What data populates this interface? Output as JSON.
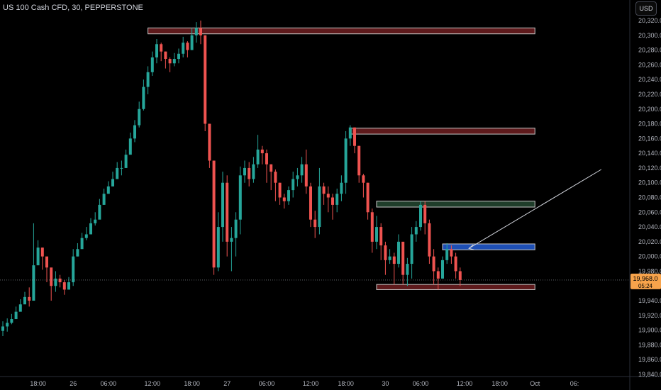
{
  "header": {
    "title": "US 100 Cash CFD, 30, PEPPERSTONE",
    "unit": "USD"
  },
  "price_badge": {
    "price": "19,968.0",
    "countdown": "05:24"
  },
  "colors": {
    "up": "#26a69a",
    "down": "#ef5350",
    "zone_red": "#5e1a1c",
    "zone_green": "#1f3d2a",
    "zone_blue": "#1e4fb5",
    "badge": "#f7a34b"
  },
  "chart_data": {
    "type": "candlestick",
    "ylim": [
      19830,
      20330
    ],
    "y_ticks": [
      19840,
      19860,
      19880,
      19900,
      19920,
      19940,
      19960,
      19980,
      20000,
      20020,
      20040,
      20060,
      20080,
      20100,
      20120,
      20140,
      20160,
      20180,
      20200,
      20220,
      20240,
      20260,
      20280,
      20300,
      20320
    ],
    "x_ticks": [
      {
        "label": "18:00",
        "i": 8
      },
      {
        "label": "26",
        "i": 16
      },
      {
        "label": "06:00",
        "i": 24
      },
      {
        "label": "12:00",
        "i": 34
      },
      {
        "label": "18:00",
        "i": 43
      },
      {
        "label": "27",
        "i": 51
      },
      {
        "label": "06:00",
        "i": 60
      },
      {
        "label": "12:00",
        "i": 70
      },
      {
        "label": "18:00",
        "i": 78
      },
      {
        "label": "30",
        "i": 87
      },
      {
        "label": "06:00",
        "i": 95
      },
      {
        "label": "12:00",
        "i": 105
      },
      {
        "label": "18:00",
        "i": 113
      },
      {
        "label": "Oct",
        "i": 121
      },
      {
        "label": "06:",
        "i": 130
      }
    ],
    "close": [
      19905,
      19910,
      19915,
      19925,
      19935,
      19945,
      19940,
      19988,
      20012,
      20000,
      19985,
      19960,
      19970,
      19965,
      19955,
      19965,
      20000,
      20010,
      20025,
      20030,
      20045,
      20050,
      20070,
      20085,
      20095,
      20105,
      20120,
      20120,
      20138,
      20160,
      20178,
      20200,
      20230,
      20250,
      20270,
      20288,
      20278,
      20268,
      20262,
      20268,
      20275,
      20290,
      20280,
      20300,
      20310,
      20300,
      20180,
      20130,
      19985,
      20040,
      20100,
      20020,
      20025,
      20050,
      20110,
      20120,
      20105,
      20125,
      20145,
      20140,
      20125,
      20115,
      20100,
      20080,
      20075,
      20090,
      20105,
      20110,
      20125,
      20095,
      20050,
      20040,
      20095,
      20085,
      20080,
      20070,
      20085,
      20100,
      20160,
      20175,
      20150,
      20110,
      20100,
      20060,
      20020,
      20040,
      20015,
      19995,
      20000,
      19990,
      20020,
      19975,
      19990,
      20030,
      20040,
      20070,
      20045,
      20000,
      19980,
      19970,
      19995,
      20010,
      20000,
      19980,
      19968
    ],
    "high": [
      19912,
      19916,
      19922,
      19932,
      19942,
      19952,
      19958,
      20045,
      20022,
      20012,
      19995,
      19975,
      19980,
      19975,
      19968,
      19972,
      20010,
      20018,
      20032,
      20040,
      20052,
      20060,
      20078,
      20092,
      20102,
      20115,
      20128,
      20130,
      20145,
      20168,
      20185,
      20210,
      20240,
      20258,
      20278,
      20295,
      20290,
      20278,
      20270,
      20276,
      20282,
      20298,
      20292,
      20310,
      20318,
      20320,
      20300,
      20180,
      20130,
      20060,
      20115,
      20110,
      20040,
      20060,
      20122,
      20130,
      20128,
      20135,
      20165,
      20150,
      20145,
      20125,
      20118,
      20100,
      20085,
      20095,
      20115,
      20120,
      20135,
      20145,
      20100,
      20062,
      20120,
      20100,
      20095,
      20085,
      20092,
      20110,
      20170,
      20178,
      20175,
      20150,
      20112,
      20100,
      20065,
      20055,
      20045,
      20020,
      20010,
      20005,
      20030,
      20015,
      19998,
      20040,
      20048,
      20075,
      20075,
      20050,
      20010,
      19985,
      20000,
      20018,
      20015,
      20005,
      19985
    ],
    "low": [
      19892,
      19898,
      19908,
      19918,
      19928,
      19938,
      19932,
      19970,
      19995,
      19982,
      19965,
      19940,
      19952,
      19958,
      19948,
      19955,
      19960,
      20000,
      20015,
      20022,
      20030,
      20042,
      20060,
      20070,
      20085,
      20095,
      20105,
      20110,
      20120,
      20140,
      20155,
      20175,
      20198,
      20220,
      20245,
      20262,
      20265,
      20255,
      20250,
      20258,
      20262,
      20270,
      20270,
      20280,
      20290,
      20288,
      20170,
      20120,
      19975,
      19980,
      20020,
      20000,
      19980,
      20000,
      20030,
      20100,
      20095,
      20100,
      20120,
      20125,
      20100,
      20090,
      20075,
      20070,
      20065,
      20070,
      20080,
      20095,
      20100,
      20085,
      20040,
      20025,
      20030,
      20070,
      20060,
      20050,
      20060,
      20075,
      20085,
      20150,
      20140,
      20100,
      20080,
      20050,
      20005,
      20010,
      19995,
      19975,
      19990,
      19962,
      19985,
      19962,
      19960,
      19970,
      20020,
      20035,
      20030,
      19990,
      19962,
      19955,
      19970,
      19990,
      19990,
      19970,
      19960
    ]
  },
  "zones": [
    {
      "name": "zone-top-red",
      "i0": 33,
      "i1": 121,
      "top": 20310,
      "bottom": 20302,
      "color": "#5e1a1c"
    },
    {
      "name": "zone-mid-red",
      "i0": 79,
      "i1": 121,
      "top": 20174,
      "bottom": 20166,
      "color": "#5e1a1c"
    },
    {
      "name": "zone-green",
      "i0": 85,
      "i1": 121,
      "top": 20075,
      "bottom": 20067,
      "color": "#1f3d2a"
    },
    {
      "name": "zone-blue",
      "i0": 100,
      "i1": 121,
      "top": 20017,
      "bottom": 20009,
      "color": "#1e4fb5"
    },
    {
      "name": "zone-bottom-red",
      "i0": 85,
      "i1": 121,
      "top": 19962,
      "bottom": 19955,
      "color": "#5e1a1c"
    }
  ],
  "trend_line": {
    "i0": 106,
    "y0": 20011,
    "i1": 124,
    "y1": 20118
  }
}
